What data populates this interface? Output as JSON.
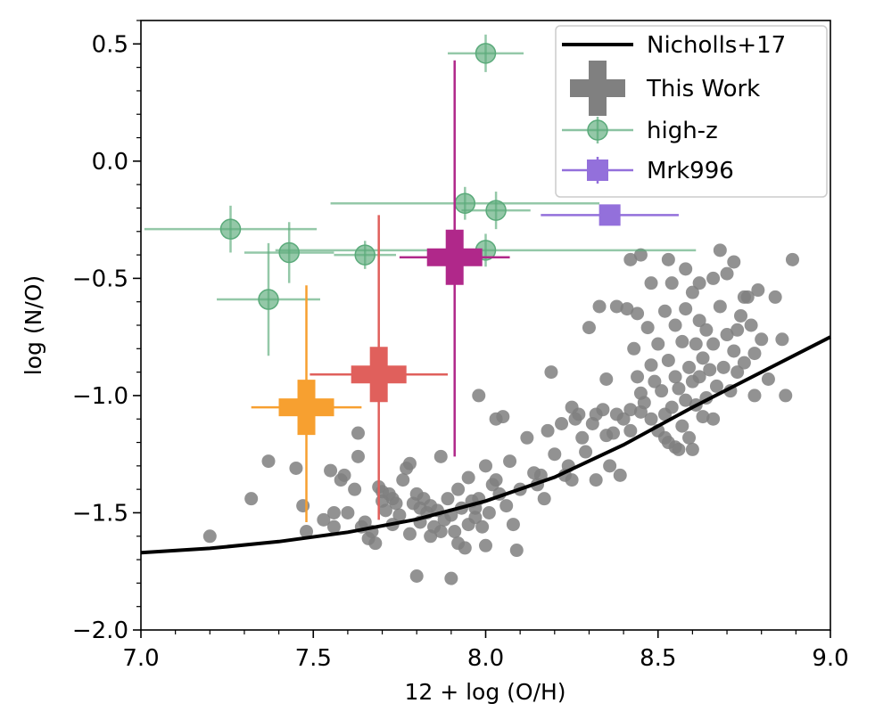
{
  "chart_data": {
    "type": "scatter",
    "xlabel": "12 + log (O/H)",
    "ylabel": "log (N/O)",
    "xlim": [
      7.0,
      9.0
    ],
    "ylim": [
      -2.0,
      0.6
    ],
    "xticks": [
      {
        "value": 7.0,
        "label": "7.0"
      },
      {
        "value": 7.5,
        "label": "7.5"
      },
      {
        "value": 8.0,
        "label": "8.0"
      },
      {
        "value": 8.5,
        "label": "8.5"
      },
      {
        "value": 9.0,
        "label": "9.0"
      }
    ],
    "yticks": [
      {
        "value": 0.5,
        "label": "0.5"
      },
      {
        "value": 0.0,
        "label": "0.0"
      },
      {
        "value": -0.5,
        "label": "−0.5"
      },
      {
        "value": -1.0,
        "label": "−1.0"
      },
      {
        "value": -1.5,
        "label": "−1.5"
      },
      {
        "value": -2.0,
        "label": "−2.0"
      }
    ],
    "legend": {
      "position": "top-right",
      "entries": [
        {
          "label": "Nicholls+17",
          "kind": "line",
          "color": "#000000"
        },
        {
          "label": "This Work",
          "kind": "cross",
          "color": "#808080"
        },
        {
          "label": "high-z",
          "kind": "circle-errorbar",
          "color": "#5aaa7a"
        },
        {
          "label": "Mrk996",
          "kind": "square-errorbar",
          "color": "#9370db"
        }
      ]
    },
    "series": [
      {
        "name": "Nicholls+17",
        "kind": "line",
        "color": "#000000",
        "points": [
          [
            7.0,
            -1.67
          ],
          [
            7.2,
            -1.652
          ],
          [
            7.4,
            -1.623
          ],
          [
            7.6,
            -1.583
          ],
          [
            7.8,
            -1.528
          ],
          [
            8.0,
            -1.45
          ],
          [
            8.2,
            -1.348
          ],
          [
            8.4,
            -1.21
          ],
          [
            8.6,
            -1.05
          ],
          [
            8.8,
            -0.9
          ],
          [
            9.0,
            -0.75
          ]
        ]
      },
      {
        "name": "This Work",
        "kind": "cross",
        "points": [
          {
            "x": 7.48,
            "y": -1.05,
            "xerr": 0.16,
            "yerr_low": 0.49,
            "yerr_high": 0.52,
            "color": "#f7a030"
          },
          {
            "x": 7.69,
            "y": -0.91,
            "xerr": 0.2,
            "yerr_low": 0.62,
            "yerr_high": 0.68,
            "color": "#e0605c"
          },
          {
            "x": 7.91,
            "y": -0.41,
            "xerr": 0.16,
            "yerr_low": 0.85,
            "yerr_high": 0.84,
            "color": "#b0288a"
          }
        ]
      },
      {
        "name": "high-z",
        "kind": "circle-errorbar",
        "color": "#5aaa7a",
        "points": [
          {
            "x": 8.0,
            "y": 0.46,
            "xerr": 0.11,
            "yerr": 0.08
          },
          {
            "x": 7.26,
            "y": -0.29,
            "xerr": 0.25,
            "yerr": 0.1
          },
          {
            "x": 7.43,
            "y": -0.39,
            "xerr": 0.13,
            "yerr": 0.13
          },
          {
            "x": 7.65,
            "y": -0.4,
            "xerr": 0.09,
            "yerr": 0.06
          },
          {
            "x": 7.37,
            "y": -0.59,
            "xerr": 0.15,
            "yerr": 0.24
          },
          {
            "x": 7.94,
            "y": -0.18,
            "xerr": 0.39,
            "yerr": 0.07
          },
          {
            "x": 8.03,
            "y": -0.21,
            "xerr": 0.1,
            "yerr": 0.08
          },
          {
            "x": 8.0,
            "y": -0.38,
            "xerr": 0.61,
            "yerr": 0.07
          }
        ]
      },
      {
        "name": "Mrk996",
        "kind": "square-errorbar",
        "color": "#9370db",
        "points": [
          {
            "x": 8.36,
            "y": -0.23,
            "xerr": 0.2,
            "yerr": 0.02
          }
        ]
      },
      {
        "name": "",
        "kind": "background-scatter",
        "color": "#7f7f7f",
        "points": [
          [
            7.2,
            -1.6
          ],
          [
            7.32,
            -1.44
          ],
          [
            7.37,
            -1.28
          ],
          [
            7.45,
            -1.31
          ],
          [
            7.47,
            -1.47
          ],
          [
            7.48,
            -1.58
          ],
          [
            7.53,
            -1.53
          ],
          [
            7.55,
            -1.32
          ],
          [
            7.56,
            -1.5
          ],
          [
            7.56,
            -1.56
          ],
          [
            7.58,
            -1.36
          ],
          [
            7.59,
            -1.34
          ],
          [
            7.6,
            -1.5
          ],
          [
            7.62,
            -1.4
          ],
          [
            7.63,
            -1.16
          ],
          [
            7.63,
            -1.26
          ],
          [
            7.64,
            -1.56
          ],
          [
            7.65,
            -1.54
          ],
          [
            7.66,
            -1.61
          ],
          [
            7.67,
            -1.58
          ],
          [
            7.68,
            -1.63
          ],
          [
            7.69,
            -1.39
          ],
          [
            7.7,
            -1.41
          ],
          [
            7.7,
            -1.45
          ],
          [
            7.71,
            -1.49
          ],
          [
            7.72,
            -1.42
          ],
          [
            7.73,
            -1.55
          ],
          [
            7.73,
            -1.44
          ],
          [
            7.74,
            -1.46
          ],
          [
            7.75,
            -1.51
          ],
          [
            7.76,
            -1.36
          ],
          [
            7.77,
            -1.31
          ],
          [
            7.78,
            -1.29
          ],
          [
            7.78,
            -1.59
          ],
          [
            7.79,
            -1.46
          ],
          [
            7.8,
            -1.42
          ],
          [
            7.8,
            -1.77
          ],
          [
            7.81,
            -1.48
          ],
          [
            7.81,
            -1.54
          ],
          [
            7.82,
            -1.44
          ],
          [
            7.83,
            -1.5
          ],
          [
            7.84,
            -1.47
          ],
          [
            7.84,
            -1.6
          ],
          [
            7.85,
            -1.56
          ],
          [
            7.86,
            -1.49
          ],
          [
            7.87,
            -1.26
          ],
          [
            7.87,
            -1.58
          ],
          [
            7.88,
            -1.53
          ],
          [
            7.89,
            -1.44
          ],
          [
            7.9,
            -1.78
          ],
          [
            7.9,
            -1.51
          ],
          [
            7.91,
            -1.58
          ],
          [
            7.92,
            -1.4
          ],
          [
            7.92,
            -1.63
          ],
          [
            7.93,
            -1.48
          ],
          [
            7.94,
            -1.65
          ],
          [
            7.95,
            -1.55
          ],
          [
            7.95,
            -1.35
          ],
          [
            7.96,
            -1.45
          ],
          [
            7.97,
            -1.52
          ],
          [
            7.97,
            -1.48
          ],
          [
            7.98,
            -1.0
          ],
          [
            7.98,
            -1.44
          ],
          [
            7.99,
            -1.56
          ],
          [
            8.0,
            -1.3
          ],
          [
            8.0,
            -1.64
          ],
          [
            8.01,
            -1.5
          ],
          [
            8.02,
            -1.38
          ],
          [
            8.03,
            -1.36
          ],
          [
            8.03,
            -1.1
          ],
          [
            8.04,
            -1.42
          ],
          [
            8.05,
            -1.09
          ],
          [
            8.06,
            -1.47
          ],
          [
            8.07,
            -1.28
          ],
          [
            8.08,
            -1.55
          ],
          [
            8.09,
            -1.66
          ],
          [
            8.1,
            -1.4
          ],
          [
            8.12,
            -1.18
          ],
          [
            8.14,
            -1.33
          ],
          [
            8.15,
            -1.38
          ],
          [
            8.16,
            -1.34
          ],
          [
            8.17,
            -1.44
          ],
          [
            8.18,
            -1.15
          ],
          [
            8.19,
            -0.9
          ],
          [
            8.2,
            -1.25
          ],
          [
            8.22,
            -1.12
          ],
          [
            8.23,
            -1.34
          ],
          [
            8.24,
            -1.3
          ],
          [
            8.25,
            -1.36
          ],
          [
            8.25,
            -1.05
          ],
          [
            8.26,
            -1.1
          ],
          [
            8.27,
            -1.08
          ],
          [
            8.28,
            -1.18
          ],
          [
            8.29,
            -1.24
          ],
          [
            8.3,
            -0.71
          ],
          [
            8.31,
            -1.12
          ],
          [
            8.32,
            -1.36
          ],
          [
            8.32,
            -1.08
          ],
          [
            8.33,
            -0.62
          ],
          [
            8.34,
            -1.06
          ],
          [
            8.35,
            -0.93
          ],
          [
            8.35,
            -1.17
          ],
          [
            8.36,
            -1.3
          ],
          [
            8.37,
            -1.16
          ],
          [
            8.38,
            -1.08
          ],
          [
            8.38,
            -0.62
          ],
          [
            8.39,
            -1.34
          ],
          [
            8.4,
            -1.1
          ],
          [
            8.41,
            -0.63
          ],
          [
            8.42,
            -1.06
          ],
          [
            8.42,
            -1.15
          ],
          [
            8.43,
            -0.8
          ],
          [
            8.44,
            -0.92
          ],
          [
            8.44,
            -0.65
          ],
          [
            8.45,
            -0.99
          ],
          [
            8.45,
            -1.07
          ],
          [
            8.46,
            -1.03
          ],
          [
            8.47,
            -0.71
          ],
          [
            8.48,
            -0.87
          ],
          [
            8.48,
            -1.1
          ],
          [
            8.49,
            -0.94
          ],
          [
            8.5,
            -0.78
          ],
          [
            8.5,
            -1.15
          ],
          [
            8.51,
            -0.98
          ],
          [
            8.52,
            -0.64
          ],
          [
            8.52,
            -1.08
          ],
          [
            8.53,
            -0.85
          ],
          [
            8.53,
            -1.2
          ],
          [
            8.54,
            -0.52
          ],
          [
            8.54,
            -1.05
          ],
          [
            8.55,
            -0.7
          ],
          [
            8.55,
            -0.92
          ],
          [
            8.56,
            -0.97
          ],
          [
            8.56,
            -1.23
          ],
          [
            8.57,
            -0.77
          ],
          [
            8.57,
            -1.13
          ],
          [
            8.58,
            -0.63
          ],
          [
            8.58,
            -1.02
          ],
          [
            8.59,
            -0.88
          ],
          [
            8.59,
            -1.18
          ],
          [
            8.6,
            -0.56
          ],
          [
            8.6,
            -0.94
          ],
          [
            8.61,
            -0.78
          ],
          [
            8.61,
            -1.04
          ],
          [
            8.62,
            -0.68
          ],
          [
            8.62,
            -0.92
          ],
          [
            8.63,
            -0.84
          ],
          [
            8.63,
            -1.09
          ],
          [
            8.64,
            -0.72
          ],
          [
            8.64,
            -1.01
          ],
          [
            8.65,
            -0.89
          ],
          [
            8.66,
            -0.5
          ],
          [
            8.66,
            -0.78
          ],
          [
            8.67,
            -0.96
          ],
          [
            8.68,
            -0.62
          ],
          [
            8.69,
            -0.88
          ],
          [
            8.7,
            -0.48
          ],
          [
            8.7,
            -0.74
          ],
          [
            8.71,
            -0.98
          ],
          [
            8.72,
            -0.43
          ],
          [
            8.72,
            -0.81
          ],
          [
            8.73,
            -0.72
          ],
          [
            8.73,
            -0.9
          ],
          [
            8.74,
            -0.66
          ],
          [
            8.75,
            -0.86
          ],
          [
            8.76,
            -0.58
          ],
          [
            8.77,
            -0.7
          ],
          [
            8.78,
            -0.82
          ],
          [
            8.79,
            -0.55
          ],
          [
            8.8,
            -0.76
          ],
          [
            8.82,
            -0.93
          ],
          [
            8.84,
            -0.58
          ],
          [
            8.86,
            -0.76
          ],
          [
            8.87,
            -1.0
          ],
          [
            8.89,
            -0.42
          ],
          [
            8.42,
            -0.42
          ],
          [
            8.48,
            -0.52
          ],
          [
            8.53,
            -0.42
          ],
          [
            8.58,
            -0.46
          ],
          [
            8.62,
            -0.52
          ],
          [
            8.68,
            -0.38
          ],
          [
            8.75,
            -0.58
          ],
          [
            8.6,
            -1.23
          ],
          [
            8.55,
            -1.22
          ],
          [
            8.66,
            -1.1
          ],
          [
            8.78,
            -1.0
          ],
          [
            8.52,
            -1.18
          ],
          [
            8.45,
            -0.4
          ]
        ]
      }
    ]
  }
}
